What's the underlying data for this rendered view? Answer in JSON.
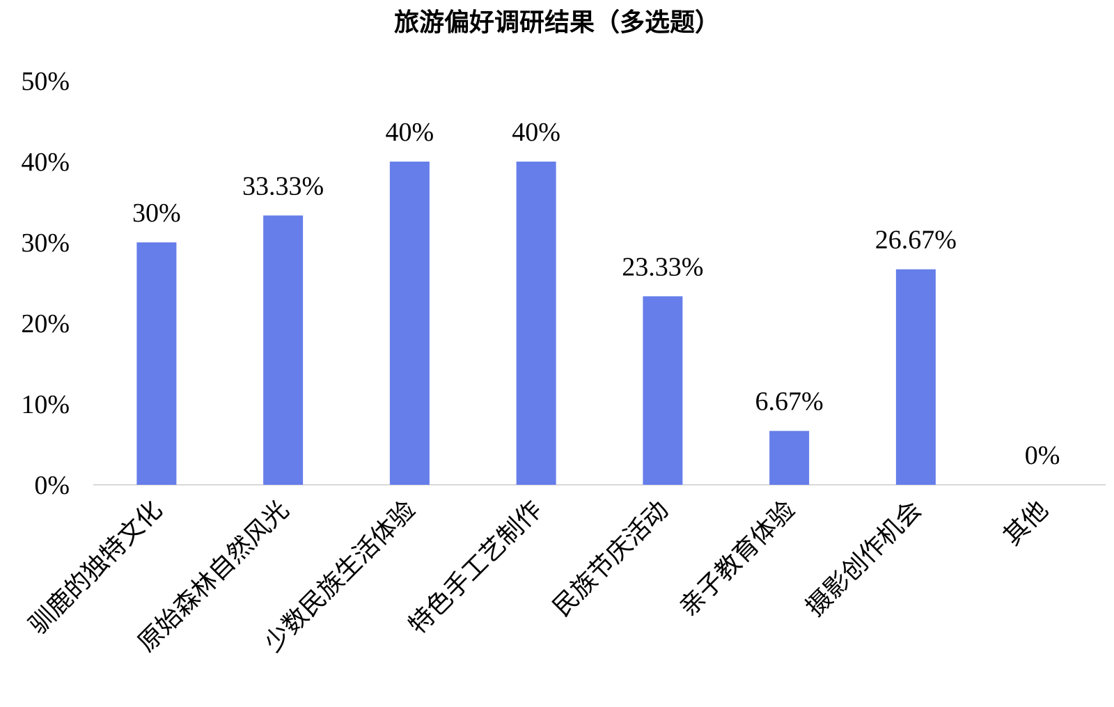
{
  "chart_data": {
    "type": "bar",
    "title": "旅游偏好调研结果（多选题）",
    "categories": [
      "驯鹿的独特文化",
      "原始森林自然风光",
      "少数民族生活体验",
      "特色手工艺制作",
      "民族节庆活动",
      "亲子教育体验",
      "摄影创作机会",
      "其他"
    ],
    "values": [
      30,
      33.33,
      40,
      40,
      23.33,
      6.67,
      26.67,
      0
    ],
    "data_labels": [
      "30%",
      "33.33%",
      "40%",
      "40%",
      "23.33%",
      "6.67%",
      "26.67%",
      "0%"
    ],
    "yticks": [
      "0%",
      "10%",
      "20%",
      "30%",
      "40%",
      "50%"
    ],
    "ylim": [
      0,
      50
    ],
    "grid": false,
    "legend": "none",
    "bar_color": "#667eea"
  }
}
